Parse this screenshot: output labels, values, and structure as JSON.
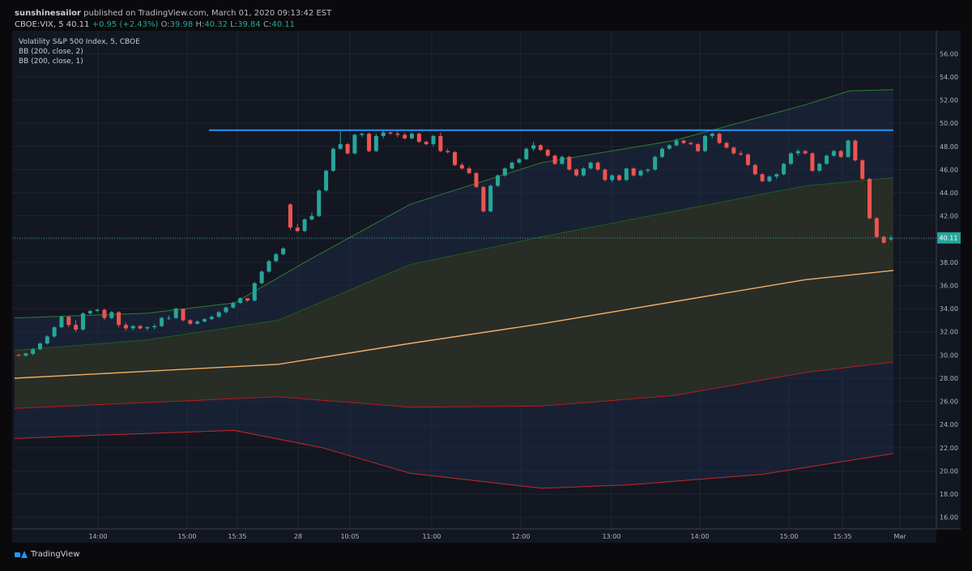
{
  "header": {
    "author": "sunshinesailor",
    "published": "published on TradingView.com, March 01, 2020 09:13:42 EST",
    "symbol": "CBOE:VIX, 5",
    "last": "40.11",
    "change": "+0.95 (+2.43%)",
    "o_label": "O:",
    "o_val": "39.98",
    "h_label": "H:",
    "h_val": "40.32",
    "l_label": "L:",
    "l_val": "39.84",
    "c_label": "C:",
    "c_val": "40.11"
  },
  "legend": {
    "title": "Volatility S&P 500 Index, 5, CBOE",
    "bb1": "BB (200, close, 2)",
    "bb2": "BB (200, close, 1)"
  },
  "footer": {
    "brand": "TradingView"
  },
  "colors": {
    "background": "#131722",
    "up": "#26a69a",
    "down": "#ef5350",
    "basis": "#f0ad66",
    "upper2": "#2e7d32",
    "lower2": "#c62828",
    "horizontal_line": "#2196f3",
    "price_line": "#26a69a"
  },
  "chart_data": {
    "type": "candlestick",
    "symbol": "CBOE:VIX",
    "interval": "5",
    "ylim": [
      15,
      57
    ],
    "y_ticks": [
      "56.00",
      "54.00",
      "52.00",
      "50.00",
      "48.00",
      "46.00",
      "44.00",
      "42.00",
      "40.00",
      "38.00",
      "36.00",
      "34.00",
      "32.00",
      "30.00",
      "28.00",
      "26.00",
      "24.00",
      "22.00",
      "20.00",
      "18.00",
      "16.00"
    ],
    "x_ticks": [
      "14:00",
      "15:00",
      "15:35",
      "28",
      "10:05",
      "11:00",
      "12:00",
      "13:00",
      "14:00",
      "15:00",
      "15:35",
      "Mar"
    ],
    "last_price": "40.11",
    "resistance_level": 49.4,
    "candles": [
      [
        30.0,
        30.1,
        29.9,
        29.95
      ],
      [
        29.95,
        30.2,
        29.85,
        30.15
      ],
      [
        30.1,
        30.6,
        30.0,
        30.5
      ],
      [
        30.5,
        31.1,
        30.4,
        31.0
      ],
      [
        31.0,
        31.7,
        30.9,
        31.6
      ],
      [
        31.6,
        32.5,
        31.5,
        32.4
      ],
      [
        32.4,
        33.4,
        32.3,
        33.3
      ],
      [
        33.3,
        33.4,
        32.4,
        32.6
      ],
      [
        32.6,
        33.0,
        32.0,
        32.2
      ],
      [
        32.2,
        33.7,
        32.1,
        33.6
      ],
      [
        33.6,
        33.9,
        33.4,
        33.8
      ],
      [
        33.8,
        34.0,
        33.7,
        33.9
      ],
      [
        33.9,
        34.0,
        33.0,
        33.2
      ],
      [
        33.2,
        33.8,
        33.1,
        33.7
      ],
      [
        33.7,
        33.8,
        32.4,
        32.6
      ],
      [
        32.6,
        32.8,
        32.1,
        32.3
      ],
      [
        32.3,
        32.6,
        32.1,
        32.5
      ],
      [
        32.5,
        32.6,
        32.2,
        32.3
      ],
      [
        32.3,
        32.5,
        32.1,
        32.4
      ],
      [
        32.4,
        32.7,
        32.2,
        32.5
      ],
      [
        32.5,
        33.3,
        32.4,
        33.2
      ],
      [
        33.2,
        33.4,
        33.0,
        33.2
      ],
      [
        33.2,
        34.1,
        33.1,
        34.0
      ],
      [
        34.0,
        34.0,
        32.9,
        33.0
      ],
      [
        33.0,
        33.1,
        32.6,
        32.7
      ],
      [
        32.7,
        33.0,
        32.6,
        32.9
      ],
      [
        32.9,
        33.2,
        32.8,
        33.1
      ],
      [
        33.1,
        33.4,
        33.0,
        33.3
      ],
      [
        33.3,
        33.8,
        33.2,
        33.7
      ],
      [
        33.7,
        34.2,
        33.6,
        34.1
      ],
      [
        34.1,
        34.6,
        34.0,
        34.5
      ],
      [
        34.5,
        35.0,
        34.4,
        34.9
      ],
      [
        34.9,
        34.9,
        34.6,
        34.7
      ],
      [
        34.7,
        36.3,
        34.6,
        36.2
      ],
      [
        36.2,
        37.3,
        36.1,
        37.2
      ],
      [
        37.2,
        38.2,
        37.1,
        38.1
      ],
      [
        38.1,
        38.8,
        38.0,
        38.7
      ],
      [
        38.7,
        39.3,
        38.6,
        39.2
      ],
      [
        43.0,
        43.1,
        40.8,
        41.0
      ],
      [
        41.0,
        41.3,
        40.6,
        40.7
      ],
      [
        40.7,
        41.8,
        40.6,
        41.7
      ],
      [
        41.7,
        42.3,
        41.6,
        42.0
      ],
      [
        42.0,
        44.3,
        41.9,
        44.2
      ],
      [
        44.2,
        46.0,
        44.1,
        45.9
      ],
      [
        45.9,
        47.9,
        45.8,
        47.8
      ],
      [
        47.8,
        49.3,
        47.7,
        48.2
      ],
      [
        48.2,
        48.3,
        47.3,
        47.4
      ],
      [
        47.4,
        49.1,
        47.3,
        49.0
      ],
      [
        49.0,
        49.2,
        48.8,
        49.1
      ],
      [
        49.1,
        49.2,
        47.5,
        47.6
      ],
      [
        47.6,
        49.1,
        47.5,
        48.9
      ],
      [
        48.9,
        49.4,
        48.7,
        49.2
      ],
      [
        49.2,
        49.3,
        49.0,
        49.1
      ],
      [
        49.1,
        49.4,
        48.8,
        49.0
      ],
      [
        49.0,
        49.2,
        48.6,
        48.7
      ],
      [
        48.7,
        49.2,
        48.6,
        49.1
      ],
      [
        49.1,
        49.2,
        48.3,
        48.4
      ],
      [
        48.4,
        48.5,
        48.1,
        48.2
      ],
      [
        48.2,
        49.0,
        48.0,
        48.9
      ],
      [
        48.9,
        49.2,
        47.5,
        47.6
      ],
      [
        47.6,
        47.8,
        47.4,
        47.5
      ],
      [
        47.5,
        47.6,
        46.3,
        46.4
      ],
      [
        46.4,
        46.6,
        46.0,
        46.1
      ],
      [
        46.1,
        46.3,
        45.6,
        45.7
      ],
      [
        45.7,
        45.8,
        44.4,
        44.5
      ],
      [
        44.5,
        44.6,
        42.3,
        42.4
      ],
      [
        42.4,
        44.7,
        42.3,
        44.6
      ],
      [
        44.6,
        45.6,
        44.5,
        45.5
      ],
      [
        45.5,
        46.2,
        45.4,
        46.1
      ],
      [
        46.1,
        46.7,
        46.0,
        46.6
      ],
      [
        46.6,
        47.0,
        46.5,
        46.9
      ],
      [
        46.9,
        47.9,
        46.8,
        47.8
      ],
      [
        47.8,
        48.4,
        47.6,
        48.1
      ],
      [
        48.1,
        48.2,
        47.6,
        47.7
      ],
      [
        47.7,
        47.8,
        47.1,
        47.2
      ],
      [
        47.2,
        47.3,
        46.4,
        46.5
      ],
      [
        46.5,
        47.2,
        46.4,
        47.1
      ],
      [
        47.1,
        47.2,
        45.9,
        46.0
      ],
      [
        46.0,
        46.1,
        45.4,
        45.5
      ],
      [
        45.5,
        46.2,
        45.4,
        46.1
      ],
      [
        46.1,
        46.7,
        46.0,
        46.6
      ],
      [
        46.6,
        46.7,
        45.9,
        46.0
      ],
      [
        46.0,
        46.1,
        45.0,
        45.1
      ],
      [
        45.1,
        45.6,
        44.9,
        45.5
      ],
      [
        45.5,
        45.6,
        45.0,
        45.1
      ],
      [
        45.1,
        46.2,
        45.0,
        46.1
      ],
      [
        46.1,
        46.2,
        45.4,
        45.5
      ],
      [
        45.5,
        46.0,
        45.4,
        45.9
      ],
      [
        45.9,
        46.1,
        45.7,
        46.0
      ],
      [
        46.0,
        47.2,
        45.9,
        47.1
      ],
      [
        47.1,
        47.9,
        47.0,
        47.8
      ],
      [
        47.8,
        48.2,
        47.7,
        48.1
      ],
      [
        48.1,
        48.7,
        48.0,
        48.5
      ],
      [
        48.5,
        48.6,
        48.2,
        48.3
      ],
      [
        48.3,
        48.4,
        48.1,
        48.2
      ],
      [
        48.2,
        48.3,
        47.5,
        47.6
      ],
      [
        47.6,
        49.0,
        47.5,
        48.9
      ],
      [
        48.9,
        49.2,
        48.7,
        49.1
      ],
      [
        49.1,
        49.2,
        48.2,
        48.3
      ],
      [
        48.3,
        48.4,
        47.8,
        47.9
      ],
      [
        47.9,
        48.0,
        47.3,
        47.4
      ],
      [
        47.4,
        47.6,
        47.2,
        47.3
      ],
      [
        47.3,
        47.4,
        46.3,
        46.4
      ],
      [
        46.4,
        46.5,
        45.5,
        45.6
      ],
      [
        45.6,
        45.7,
        44.9,
        45.0
      ],
      [
        45.0,
        45.5,
        44.9,
        45.4
      ],
      [
        45.4,
        45.7,
        45.2,
        45.6
      ],
      [
        45.6,
        46.6,
        45.5,
        46.5
      ],
      [
        46.5,
        47.5,
        46.4,
        47.4
      ],
      [
        47.4,
        47.8,
        47.2,
        47.6
      ],
      [
        47.6,
        47.7,
        47.3,
        47.4
      ],
      [
        47.4,
        47.5,
        45.8,
        45.9
      ],
      [
        45.9,
        46.6,
        45.8,
        46.5
      ],
      [
        46.5,
        47.3,
        46.4,
        47.2
      ],
      [
        47.2,
        47.7,
        47.1,
        47.6
      ],
      [
        47.6,
        47.7,
        47.0,
        47.1
      ],
      [
        47.1,
        48.6,
        47.0,
        48.5
      ],
      [
        48.5,
        48.6,
        46.7,
        46.8
      ],
      [
        46.8,
        46.9,
        45.1,
        45.2
      ],
      [
        45.2,
        45.3,
        41.7,
        41.8
      ],
      [
        41.8,
        41.9,
        40.1,
        40.2
      ],
      [
        40.2,
        40.3,
        39.6,
        39.7
      ],
      [
        39.98,
        40.32,
        39.84,
        40.11
      ]
    ],
    "basis": [
      [
        0,
        28.0
      ],
      [
        0.15,
        28.6
      ],
      [
        0.3,
        29.2
      ],
      [
        0.45,
        31.0
      ],
      [
        0.6,
        32.7
      ],
      [
        0.75,
        34.6
      ],
      [
        0.9,
        36.5
      ],
      [
        1.0,
        37.3
      ]
    ],
    "upper2": [
      [
        0,
        33.2
      ],
      [
        0.15,
        33.6
      ],
      [
        0.25,
        34.5
      ],
      [
        0.33,
        38.0
      ],
      [
        0.45,
        43.0
      ],
      [
        0.6,
        46.6
      ],
      [
        0.75,
        48.5
      ],
      [
        0.9,
        51.6
      ],
      [
        0.95,
        52.8
      ],
      [
        1.0,
        52.9
      ]
    ],
    "lower2": [
      [
        0,
        22.8
      ],
      [
        0.1,
        23.1
      ],
      [
        0.25,
        23.5
      ],
      [
        0.35,
        22.0
      ],
      [
        0.45,
        19.8
      ],
      [
        0.6,
        18.5
      ],
      [
        0.7,
        18.8
      ],
      [
        0.85,
        19.7
      ],
      [
        1.0,
        21.5
      ]
    ],
    "upper1": [
      [
        0,
        30.4
      ],
      [
        0.15,
        31.3
      ],
      [
        0.3,
        33.0
      ],
      [
        0.45,
        37.8
      ],
      [
        0.6,
        40.2
      ],
      [
        0.75,
        42.4
      ],
      [
        0.9,
        44.6
      ],
      [
        1.0,
        45.3
      ]
    ],
    "lower1": [
      [
        0,
        25.4
      ],
      [
        0.15,
        25.9
      ],
      [
        0.3,
        26.4
      ],
      [
        0.45,
        25.5
      ],
      [
        0.6,
        25.6
      ],
      [
        0.75,
        26.5
      ],
      [
        0.9,
        28.5
      ],
      [
        1.0,
        29.4
      ]
    ]
  }
}
